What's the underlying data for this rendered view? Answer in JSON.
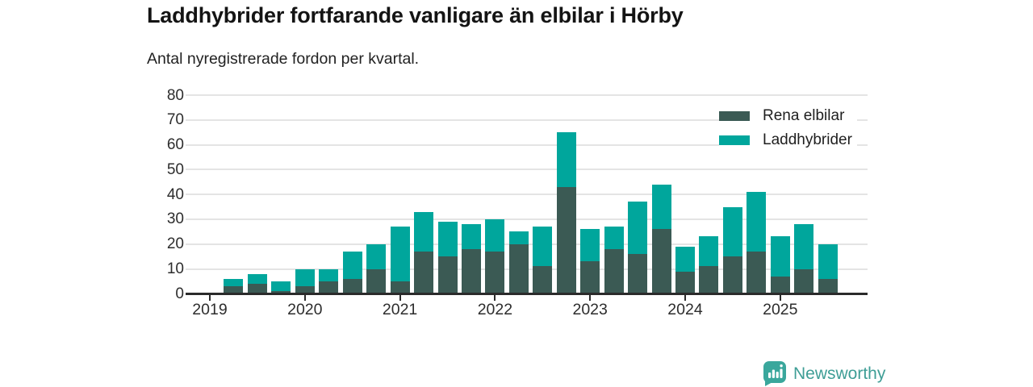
{
  "title": "Laddhybrider fortfarande vanligare än elbilar i Hörby",
  "subtitle": "Antal nyregistrerade fordon per kvartal.",
  "legend": [
    {
      "label": "Rena elbilar",
      "color": "#3b5a54"
    },
    {
      "label": "Laddhybrider",
      "color": "#00a69c"
    }
  ],
  "branding": {
    "name": "Newsworthy",
    "text_color": "#3f9e96",
    "logo_color": "#3aa79c"
  },
  "colors": {
    "elbilar": "#3b5a54",
    "laddhybrider": "#00a69c",
    "axis": "#2b2b2b",
    "gridline": "#e4e4e4"
  },
  "chart_data": {
    "type": "bar",
    "stacked": true,
    "title": "Laddhybrider fortfarande vanligare än elbilar i Hörby",
    "subtitle": "Antal nyregistrerade fordon per kvartal.",
    "xlabel": "",
    "ylabel": "",
    "ylim": [
      0,
      80
    ],
    "ytick_step": 10,
    "grid": true,
    "legend_position": "top-right",
    "x": [
      "2019 Q2",
      "2019 Q3",
      "2019 Q4",
      "2020 Q1",
      "2020 Q2",
      "2020 Q3",
      "2020 Q4",
      "2021 Q1",
      "2021 Q2",
      "2021 Q3",
      "2021 Q4",
      "2022 Q1",
      "2022 Q2",
      "2022 Q3",
      "2022 Q4",
      "2023 Q1",
      "2023 Q2",
      "2023 Q3",
      "2023 Q4",
      "2024 Q1",
      "2024 Q2",
      "2024 Q3",
      "2024 Q4",
      "2025 Q1",
      "2025 Q2",
      "2025 Q3"
    ],
    "year_ticks": [
      "2019",
      "2020",
      "2021",
      "2022",
      "2023",
      "2024",
      "2025"
    ],
    "series": [
      {
        "name": "Rena elbilar",
        "color": "#3b5a54",
        "values": [
          3,
          4,
          1,
          3,
          5,
          6,
          10,
          5,
          17,
          15,
          18,
          17,
          20,
          11,
          43,
          13,
          18,
          16,
          26,
          9,
          11,
          15,
          17,
          7,
          10,
          6
        ]
      },
      {
        "name": "Laddhybrider",
        "color": "#00a69c",
        "values": [
          3,
          4,
          4,
          7,
          5,
          11,
          10,
          22,
          16,
          14,
          10,
          13,
          5,
          16,
          22,
          13,
          9,
          21,
          18,
          10,
          12,
          20,
          24,
          16,
          18,
          14
        ]
      }
    ]
  }
}
